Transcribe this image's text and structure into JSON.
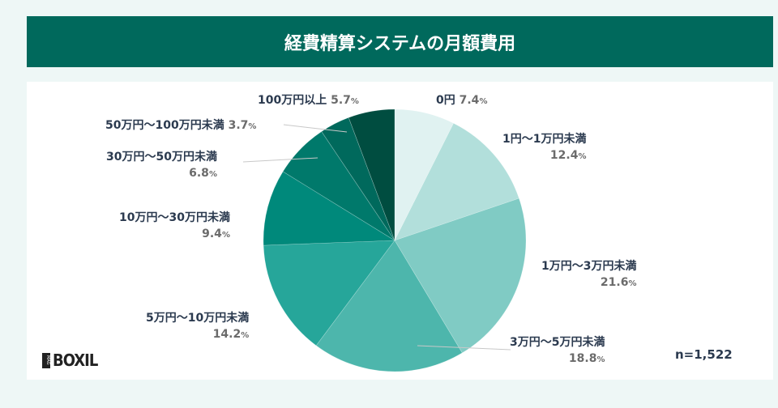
{
  "title": "経費精算システムの月額費用",
  "n_label": "n=1,522",
  "logo": {
    "mag": "MAG",
    "text": "BOXIL"
  },
  "chart_data": {
    "type": "pie",
    "title": "経費精算システムの月額費用",
    "start": "top",
    "direction": "clockwise",
    "categories": [
      "0円",
      "1円〜1万円未満",
      "1万円〜3万円未満",
      "3万円〜5万円未満",
      "5万円〜10万円未満",
      "10万円〜30万円未満",
      "30万円〜50万円未満",
      "50万円〜100万円未満",
      "100万円以上"
    ],
    "values": [
      7.4,
      12.4,
      21.6,
      18.8,
      14.2,
      9.4,
      6.8,
      3.7,
      5.7
    ],
    "value_labels": [
      "7.4",
      "12.4",
      "21.6",
      "18.8",
      "14.2",
      "9.4",
      "6.8",
      "3.7",
      "5.7"
    ],
    "unit": "%",
    "colors": [
      "#e0f2f1",
      "#b2dfdb",
      "#80cbc4",
      "#4db6ac",
      "#26a69a",
      "#00897b",
      "#00796b",
      "#00695c",
      "#004d40"
    ]
  }
}
